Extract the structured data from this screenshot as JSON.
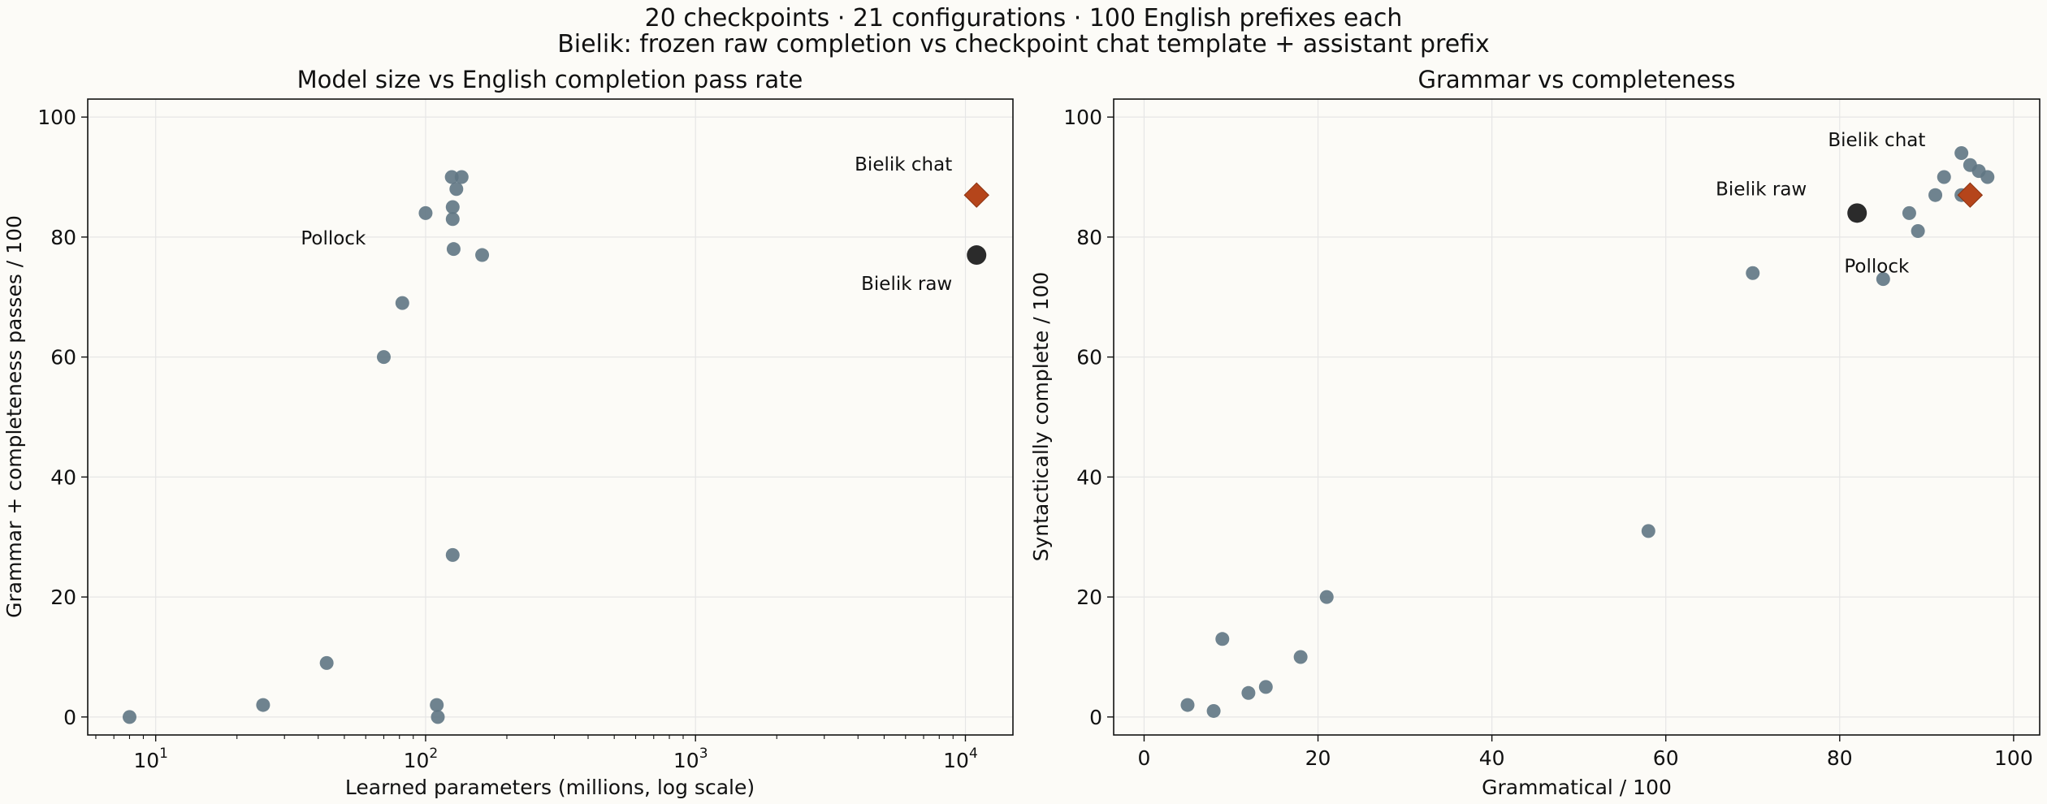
{
  "figure": {
    "title_line1": "20 checkpoints · 21 configurations · 100 English prefixes each",
    "title_line2": "Bielik: frozen raw completion vs checkpoint chat template + assistant prefix"
  },
  "colors": {
    "background": "#fcfbf7",
    "checkpoint": "#5f7683",
    "bielik_chat": "#b5451b",
    "bielik_raw": "#2b2b2b",
    "grid": "#e6e6e6"
  },
  "chart_data": [
    {
      "type": "scatter",
      "title": "Model size vs English completion pass rate",
      "xlabel": "Learned parameters (millions, log scale)",
      "ylabel": "Grammar + completeness passes / 100",
      "xscale": "log",
      "xlim": [
        5.6,
        15000
      ],
      "ylim": [
        -3,
        103
      ],
      "x_ticks": [
        10,
        100,
        1000,
        10000
      ],
      "x_tick_labels": [
        [
          "10",
          "1"
        ],
        [
          "10",
          "2"
        ],
        [
          "10",
          "3"
        ],
        [
          "10",
          "4"
        ]
      ],
      "y_ticks": [
        0,
        20,
        40,
        60,
        80,
        100
      ],
      "grid": true,
      "series": [
        {
          "marker": "circle",
          "points": [
            {
              "x": 8,
              "y": 0
            },
            {
              "x": 25,
              "y": 2
            },
            {
              "x": 43,
              "y": 9
            },
            {
              "x": 70,
              "y": 60
            },
            {
              "x": 82,
              "y": 69
            },
            {
              "x": 100,
              "y": 84
            },
            {
              "x": 110,
              "y": 2
            },
            {
              "x": 111,
              "y": 0
            },
            {
              "x": 125,
              "y": 90
            },
            {
              "x": 126,
              "y": 85
            },
            {
              "x": 126,
              "y": 83
            },
            {
              "x": 126,
              "y": 27
            },
            {
              "x": 127,
              "y": 78
            },
            {
              "x": 130,
              "y": 88
            },
            {
              "x": 136,
              "y": 90
            },
            {
              "x": 162,
              "y": 77
            }
          ]
        },
        {
          "name": "Bielik chat",
          "marker": "diamond",
          "points": [
            {
              "x": 11000,
              "y": 87
            }
          ]
        },
        {
          "name": "Bielik raw",
          "marker": "big-circle",
          "points": [
            {
              "x": 11000,
              "y": 77
            }
          ]
        }
      ],
      "annotations": [
        {
          "text": "Pollock",
          "x": 82,
          "y": 69
        },
        {
          "text": "Bielik chat",
          "x": 11000,
          "y": 87
        },
        {
          "text": "Bielik raw",
          "x": 11000,
          "y": 77
        }
      ]
    },
    {
      "type": "scatter",
      "title": "Grammar vs completeness",
      "xlabel": "Grammatical / 100",
      "ylabel": "Syntactically complete / 100",
      "xscale": "linear",
      "xlim": [
        -3.5,
        103
      ],
      "ylim": [
        -3,
        103
      ],
      "x_ticks": [
        0,
        20,
        40,
        60,
        80,
        100
      ],
      "y_ticks": [
        0,
        20,
        40,
        60,
        80,
        100
      ],
      "grid": true,
      "series": [
        {
          "marker": "circle",
          "points": [
            {
              "x": 5,
              "y": 2
            },
            {
              "x": 8,
              "y": 1
            },
            {
              "x": 9,
              "y": 13
            },
            {
              "x": 12,
              "y": 4
            },
            {
              "x": 14,
              "y": 5
            },
            {
              "x": 18,
              "y": 10
            },
            {
              "x": 21,
              "y": 20
            },
            {
              "x": 58,
              "y": 31
            },
            {
              "x": 70,
              "y": 74
            },
            {
              "x": 85,
              "y": 73
            },
            {
              "x": 88,
              "y": 84
            },
            {
              "x": 89,
              "y": 81
            },
            {
              "x": 91,
              "y": 87
            },
            {
              "x": 92,
              "y": 90
            },
            {
              "x": 94,
              "y": 94
            },
            {
              "x": 94,
              "y": 87
            },
            {
              "x": 95,
              "y": 92
            },
            {
              "x": 96,
              "y": 91
            },
            {
              "x": 97,
              "y": 90
            }
          ]
        },
        {
          "name": "Bielik chat",
          "marker": "diamond",
          "points": [
            {
              "x": 95,
              "y": 87
            }
          ]
        },
        {
          "name": "Bielik raw",
          "marker": "big-circle",
          "points": [
            {
              "x": 82,
              "y": 84
            }
          ]
        }
      ],
      "annotations": [
        {
          "text": "Bielik chat",
          "x": 95,
          "y": 87
        },
        {
          "text": "Bielik raw",
          "x": 82,
          "y": 84
        },
        {
          "text": "Pollock",
          "x": 85,
          "y": 73
        }
      ]
    }
  ]
}
